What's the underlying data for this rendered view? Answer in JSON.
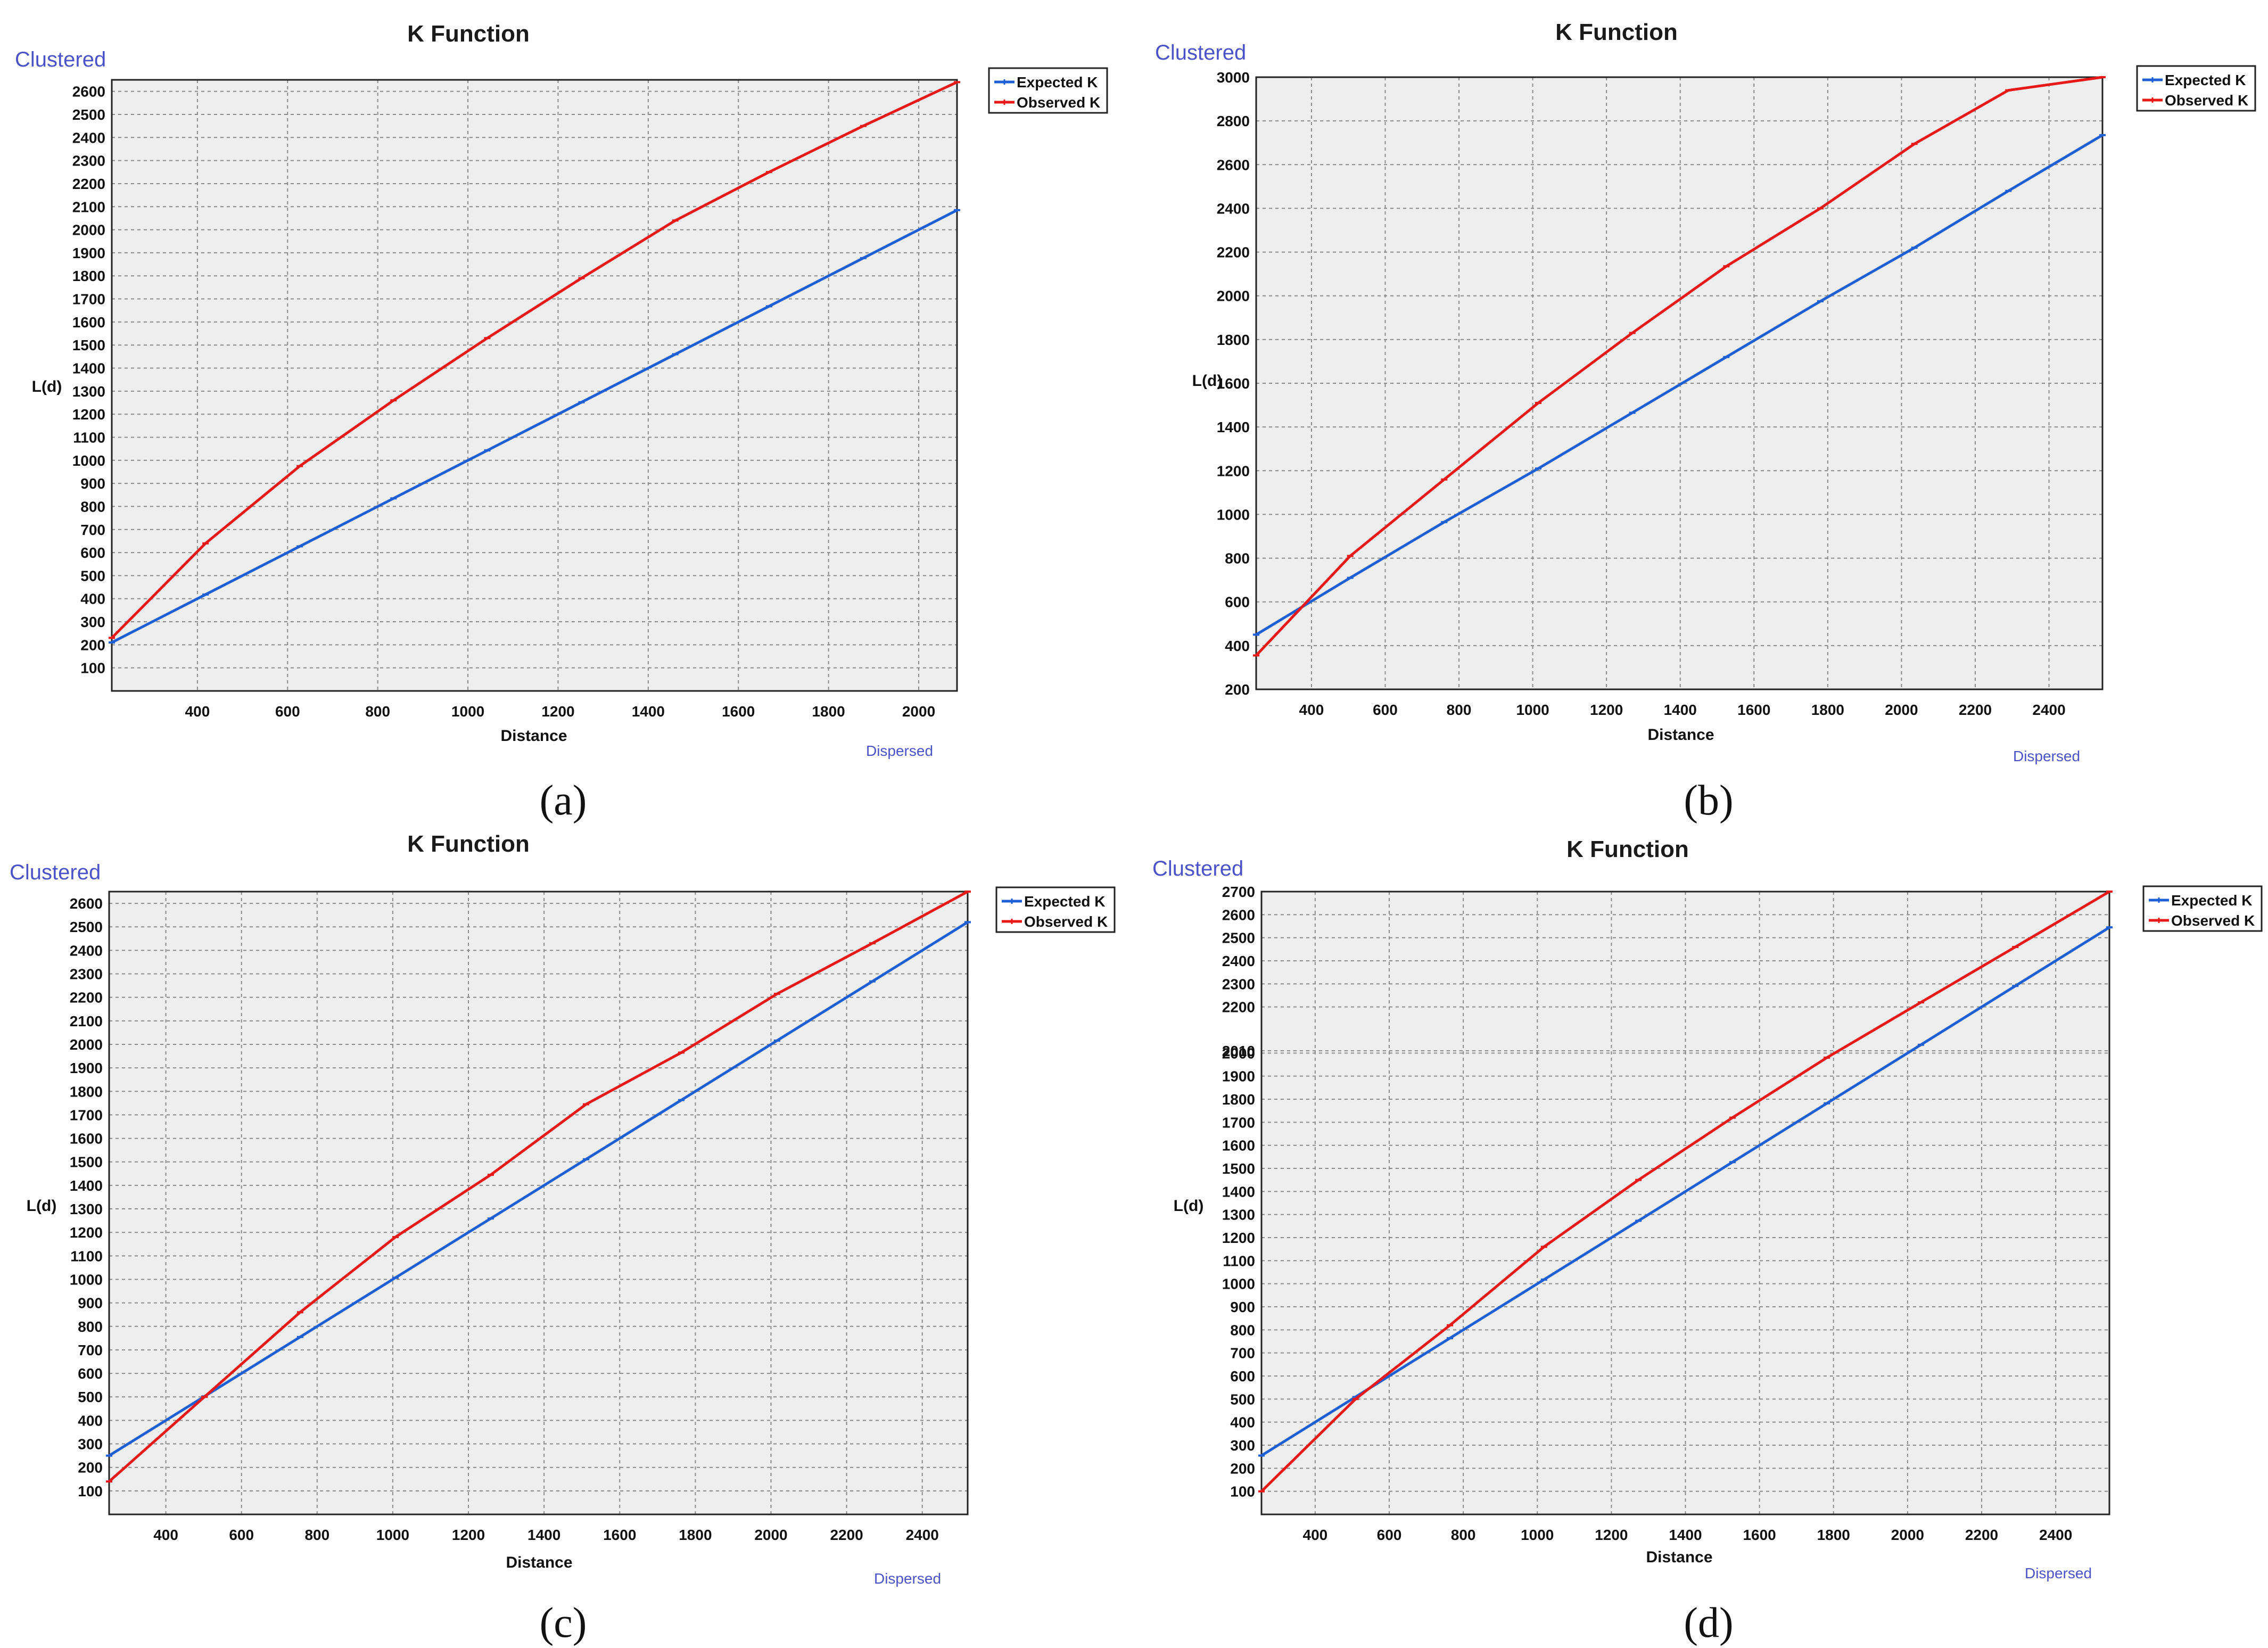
{
  "colors": {
    "expected": "#1f5fd6",
    "observed": "#e81818",
    "plot_bg": "#eeeeee",
    "grid": "#8a8a8a",
    "corner_text": "#4a52c8"
  },
  "chart_data": [
    {
      "panel": "a",
      "type": "line",
      "title": "K Function",
      "xlabel": "Distance",
      "ylabel": "L(d)",
      "corner_top": "Clustered",
      "corner_bottom": "Dispersed",
      "caption": "(a)",
      "legend": [
        "Expected K",
        "Observed K"
      ],
      "legend_position": "top-right",
      "grid": true,
      "xlim": [
        210,
        2085
      ],
      "ylim": [
        0,
        2650
      ],
      "xticks": [
        400,
        600,
        800,
        1000,
        1200,
        1400,
        1600,
        1800,
        2000
      ],
      "yticks": [
        100,
        200,
        300,
        400,
        500,
        600,
        700,
        800,
        900,
        1000,
        1100,
        1200,
        1300,
        1400,
        1500,
        1600,
        1700,
        1800,
        1900,
        2000,
        2100,
        2200,
        2300,
        2400,
        2500,
        2600
      ],
      "series": [
        {
          "name": "Expected K",
          "x": [
            210,
            418,
            627,
            835,
            1043,
            1252,
            1460,
            1668,
            1877,
            2085
          ],
          "y": [
            210,
            418,
            627,
            835,
            1043,
            1252,
            1460,
            1668,
            1877,
            2085
          ]
        },
        {
          "name": "Observed K",
          "x": [
            210,
            418,
            627,
            835,
            1043,
            1252,
            1460,
            1668,
            1877,
            2085
          ],
          "y": [
            230,
            640,
            975,
            1260,
            1530,
            1790,
            2040,
            2250,
            2450,
            2640
          ]
        }
      ]
    },
    {
      "panel": "b",
      "type": "line",
      "title": "K Function",
      "xlabel": "Distance",
      "ylabel": "L(d)",
      "corner_top": "Clustered",
      "corner_bottom": "Dispersed",
      "caption": "(b)",
      "legend": [
        "Expected K",
        "Observed K"
      ],
      "legend_position": "top-right",
      "grid": true,
      "xlim": [
        250,
        2545
      ],
      "ylim": [
        200,
        3000
      ],
      "xticks": [
        400,
        600,
        800,
        1000,
        1200,
        1400,
        1600,
        1800,
        2000,
        2200,
        2400
      ],
      "yticks": [
        200,
        400,
        600,
        800,
        1000,
        1200,
        1400,
        1600,
        1800,
        2000,
        2200,
        2400,
        2600,
        2800,
        3000
      ],
      "series": [
        {
          "name": "Expected K",
          "x": [
            250,
            505,
            760,
            1015,
            1270,
            1525,
            1780,
            2035,
            2290,
            2545
          ],
          "y": [
            450,
            710,
            965,
            1210,
            1465,
            1720,
            1975,
            2220,
            2480,
            2735
          ]
        },
        {
          "name": "Observed K",
          "x": [
            250,
            505,
            760,
            1015,
            1270,
            1525,
            1780,
            2035,
            2290,
            2545
          ],
          "y": [
            355,
            810,
            1160,
            1510,
            1830,
            2135,
            2400,
            2695,
            2940,
            3000
          ]
        }
      ]
    },
    {
      "panel": "c",
      "type": "line",
      "title": "K Function",
      "xlabel": "Distance",
      "ylabel": "L(d)",
      "corner_top": "Clustered",
      "corner_bottom": "Dispersed",
      "caption": "(c)",
      "legend": [
        "Expected K",
        "Observed K"
      ],
      "legend_position": "top-right",
      "grid": true,
      "xlim": [
        250,
        2520
      ],
      "ylim": [
        0,
        2650
      ],
      "xticks": [
        400,
        600,
        800,
        1000,
        1200,
        1400,
        1600,
        1800,
        2000,
        2200,
        2400
      ],
      "yticks": [
        100,
        200,
        300,
        400,
        500,
        600,
        700,
        800,
        900,
        1000,
        1100,
        1200,
        1300,
        1400,
        1500,
        1600,
        1700,
        1800,
        1900,
        2000,
        2100,
        2200,
        2300,
        2400,
        2500,
        2600
      ],
      "series": [
        {
          "name": "Expected K",
          "x": [
            250,
            502,
            755,
            1007,
            1259,
            1511,
            1763,
            2016,
            2268,
            2520
          ],
          "y": [
            250,
            502,
            755,
            1007,
            1259,
            1511,
            1763,
            2016,
            2268,
            2520
          ]
        },
        {
          "name": "Observed K",
          "x": [
            250,
            502,
            755,
            1007,
            1259,
            1511,
            1763,
            2016,
            2268,
            2520
          ],
          "y": [
            140,
            500,
            860,
            1180,
            1445,
            1745,
            1965,
            2215,
            2430,
            2650
          ]
        }
      ]
    },
    {
      "panel": "d",
      "type": "line",
      "title": "K Function",
      "xlabel": "Distance",
      "ylabel": "L(d)",
      "corner_top": "Clustered",
      "corner_bottom": "Dispersed",
      "caption": "(d)",
      "legend": [
        "Expected K",
        "Observed K"
      ],
      "legend_position": "top-right",
      "grid": true,
      "xlim": [
        255,
        2545
      ],
      "ylim": [
        0,
        2700
      ],
      "xticks": [
        400,
        600,
        800,
        1000,
        1200,
        1400,
        1600,
        1800,
        2000,
        2200,
        2400
      ],
      "yticks": [
        100,
        200,
        300,
        400,
        500,
        600,
        700,
        800,
        900,
        1000,
        1100,
        1200,
        1300,
        1400,
        1500,
        1600,
        1700,
        1800,
        1900,
        2000,
        2010,
        2200,
        2300,
        2400,
        2500,
        2600,
        2700
      ],
      "ytick_labels": [
        "100",
        "200",
        "300",
        "400",
        "500",
        "600",
        "700",
        "800",
        "900",
        "1000",
        "1100",
        "1200",
        "1300",
        "1400",
        "1500",
        "1600",
        "1700",
        "1800",
        "1900",
        "2000",
        "2010",
        "2200",
        "2300",
        "2400",
        "2500",
        "2600",
        "2700"
      ],
      "series": [
        {
          "name": "Expected K",
          "x": [
            255,
            509,
            764,
            1018,
            1273,
            1527,
            1782,
            2036,
            2291,
            2545
          ],
          "y": [
            255,
            509,
            764,
            1018,
            1273,
            1527,
            1782,
            2036,
            2291,
            2545
          ]
        },
        {
          "name": "Observed K",
          "x": [
            255,
            509,
            764,
            1018,
            1273,
            1527,
            1782,
            2036,
            2291,
            2545
          ],
          "y": [
            100,
            500,
            820,
            1160,
            1450,
            1720,
            1980,
            2220,
            2460,
            2700
          ]
        }
      ]
    }
  ]
}
